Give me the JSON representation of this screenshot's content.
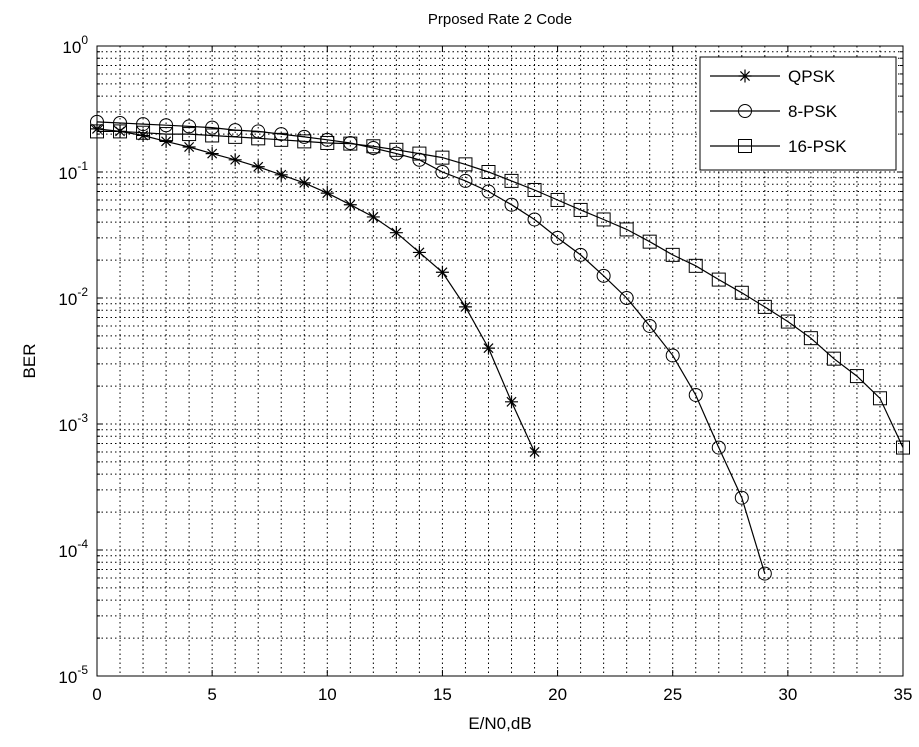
{
  "chart_data": {
    "type": "line",
    "title": "Prposed Rate 2 Code",
    "xlabel": "E/N0,dB",
    "ylabel": "BER",
    "xlim": [
      0,
      35
    ],
    "ylim": [
      1e-05,
      1
    ],
    "yscale": "log",
    "grid": "major-and-minor dotted",
    "legend_position": "top-right",
    "x_ticks": [
      "0",
      "5",
      "10",
      "15",
      "20",
      "25",
      "30",
      "35"
    ],
    "y_ticks": [
      {
        "base": "10",
        "exp": "0",
        "value": 1
      },
      {
        "base": "10",
        "exp": "-1",
        "value": 0.1
      },
      {
        "base": "10",
        "exp": "-2",
        "value": 0.01
      },
      {
        "base": "10",
        "exp": "-3",
        "value": 0.001
      },
      {
        "base": "10",
        "exp": "-4",
        "value": 0.0001
      },
      {
        "base": "10",
        "exp": "-5",
        "value": 1e-05
      }
    ],
    "series": [
      {
        "name": "QPSK",
        "marker": "star",
        "x": [
          0,
          1,
          2,
          3,
          4,
          5,
          6,
          7,
          8,
          9,
          10,
          11,
          12,
          13,
          14,
          15,
          16,
          17,
          18,
          19
        ],
        "y": [
          0.22,
          0.21,
          0.195,
          0.175,
          0.158,
          0.14,
          0.125,
          0.11,
          0.095,
          0.082,
          0.068,
          0.055,
          0.044,
          0.033,
          0.023,
          0.016,
          0.0085,
          0.004,
          0.0015,
          0.0006
        ]
      },
      {
        "name": "8-PSK",
        "marker": "circle",
        "x": [
          0,
          1,
          2,
          3,
          4,
          5,
          6,
          7,
          8,
          9,
          10,
          11,
          12,
          13,
          14,
          15,
          16,
          17,
          18,
          19,
          20,
          21,
          22,
          23,
          24,
          25,
          26,
          27,
          28,
          29
        ],
        "y": [
          0.25,
          0.245,
          0.24,
          0.235,
          0.23,
          0.225,
          0.215,
          0.21,
          0.2,
          0.19,
          0.18,
          0.17,
          0.155,
          0.14,
          0.125,
          0.1,
          0.085,
          0.07,
          0.055,
          0.042,
          0.03,
          0.022,
          0.015,
          0.01,
          0.006,
          0.0035,
          0.0017,
          0.00065,
          0.00026,
          6.5e-05
        ]
      },
      {
        "name": "16-PSK",
        "marker": "square",
        "x": [
          0,
          1,
          2,
          3,
          4,
          5,
          6,
          7,
          8,
          9,
          10,
          11,
          12,
          13,
          14,
          15,
          16,
          17,
          18,
          19,
          20,
          21,
          22,
          23,
          24,
          25,
          26,
          27,
          28,
          29,
          30,
          31,
          32,
          33,
          34,
          35
        ],
        "y": [
          0.21,
          0.21,
          0.205,
          0.2,
          0.2,
          0.195,
          0.19,
          0.185,
          0.18,
          0.175,
          0.17,
          0.168,
          0.16,
          0.15,
          0.14,
          0.13,
          0.115,
          0.1,
          0.085,
          0.072,
          0.06,
          0.05,
          0.042,
          0.035,
          0.028,
          0.022,
          0.018,
          0.014,
          0.011,
          0.0085,
          0.0065,
          0.0048,
          0.0033,
          0.0024,
          0.0016,
          0.00065
        ]
      }
    ]
  }
}
